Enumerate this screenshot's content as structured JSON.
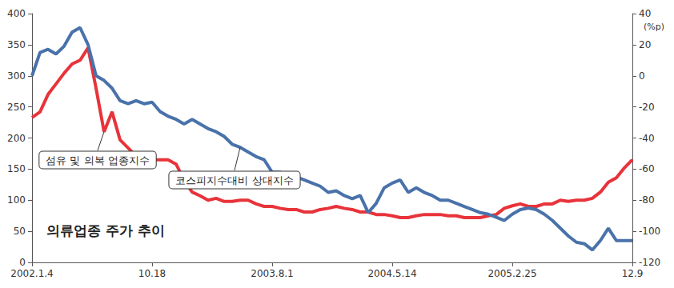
{
  "chart_data": {
    "type": "line",
    "title": "의류업종 주가 추이",
    "y2_label": "(%p)",
    "categories": [
      "2002.1.4",
      null,
      null,
      null,
      null,
      null,
      null,
      null,
      null,
      null,
      null,
      null,
      null,
      null,
      null,
      "10.18",
      null,
      null,
      null,
      null,
      null,
      null,
      null,
      null,
      null,
      null,
      null,
      null,
      null,
      null,
      "2003.8.1",
      null,
      null,
      null,
      null,
      null,
      null,
      null,
      null,
      null,
      null,
      null,
      null,
      null,
      null,
      "2004.5.14",
      null,
      null,
      null,
      null,
      null,
      null,
      null,
      null,
      null,
      null,
      null,
      null,
      null,
      null,
      "2005.2.25",
      null,
      null,
      null,
      null,
      null,
      null,
      null,
      null,
      null,
      null,
      null,
      null,
      null,
      null,
      "12.9"
    ],
    "series": [
      {
        "name": "섬유 및 의복 업종지수",
        "color": "#e8333a",
        "axis": "y",
        "values": [
          233,
          242,
          270,
          287,
          304,
          319,
          325,
          345,
          280,
          210,
          242,
          197,
          184,
          171,
          171,
          165,
          165,
          165,
          158,
          132,
          113,
          107,
          100,
          103,
          98,
          98,
          100,
          100,
          94,
          90,
          90,
          87,
          85,
          85,
          81,
          81,
          85,
          87,
          90,
          87,
          85,
          81,
          81,
          77,
          77,
          75,
          72,
          72,
          75,
          77,
          77,
          77,
          75,
          75,
          72,
          72,
          72,
          75,
          77,
          87,
          91,
          94,
          90,
          90,
          94,
          94,
          100,
          98,
          100,
          100,
          103,
          113,
          129,
          136,
          152,
          165
        ]
      },
      {
        "name": "코스피지수대비 상대지수",
        "color": "#4a72aa",
        "axis": "y2",
        "values": [
          0,
          15,
          17,
          14,
          19,
          28,
          31,
          20,
          0,
          -3,
          -8,
          -16,
          -18,
          -16,
          -18,
          -17,
          -23,
          -26,
          -28,
          -31,
          -28,
          -31,
          -34,
          -36,
          -39,
          -44,
          -46,
          -49,
          -52,
          -54,
          -62,
          -62,
          -64,
          -65,
          -67,
          -69,
          -71,
          -75,
          -74,
          -77,
          -79,
          -77,
          -88,
          -82,
          -72,
          -69,
          -67,
          -75,
          -72,
          -75,
          -77,
          -80,
          -80,
          -82,
          -84,
          -86,
          -88,
          -89,
          -91,
          -93,
          -89,
          -86,
          -85,
          -86,
          -89,
          -93,
          -98,
          -103,
          -107,
          -108,
          -112,
          -106,
          -98,
          -106,
          -106,
          -106
        ]
      }
    ],
    "ylim": [
      0,
      400
    ],
    "yticks": [
      0,
      50,
      100,
      150,
      200,
      250,
      300,
      350,
      400
    ],
    "y2lim": [
      -120,
      40
    ],
    "y2ticks": [
      -120,
      -100,
      -80,
      -60,
      -40,
      -20,
      0,
      20,
      40
    ],
    "grid": false
  }
}
